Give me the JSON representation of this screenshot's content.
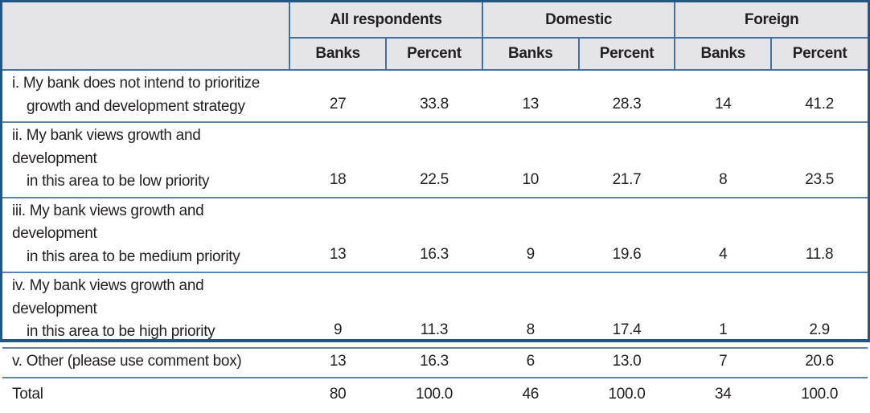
{
  "colors": {
    "frame": "#235682",
    "inner_line": "#45719F",
    "row_line": "#5A85AE",
    "header_bg": "#E5E5E8",
    "text": "#231F20"
  },
  "table": {
    "corner_label": "",
    "groups": [
      {
        "label": "All respondents",
        "columns": [
          "Banks",
          "Percent"
        ]
      },
      {
        "label": "Domestic",
        "columns": [
          "Banks",
          "Percent"
        ]
      },
      {
        "label": "Foreign",
        "columns": [
          "Banks",
          "Percent"
        ]
      }
    ],
    "rows": [
      {
        "label": [
          "i. My bank does not intend to prioritize",
          "growth and development strategy"
        ],
        "values": [
          "27",
          "33.8",
          "13",
          "28.3",
          "14",
          "41.2"
        ]
      },
      {
        "label": [
          "ii. My bank views growth and development",
          "in this area to be low priority"
        ],
        "values": [
          "18",
          "22.5",
          "10",
          "21.7",
          "8",
          "23.5"
        ]
      },
      {
        "label": [
          "iii. My bank views growth and development",
          "in this area to be medium priority"
        ],
        "values": [
          "13",
          "16.3",
          "9",
          "19.6",
          "4",
          "11.8"
        ]
      },
      {
        "label": [
          "iv. My bank views growth and development",
          "in this area to be high priority"
        ],
        "values": [
          "9",
          "11.3",
          "8",
          "17.4",
          "1",
          "2.9"
        ]
      },
      {
        "label": [
          "v. Other (please use comment box)"
        ],
        "values": [
          "13",
          "16.3",
          "6",
          "13.0",
          "7",
          "20.6"
        ]
      },
      {
        "label": [
          "Total"
        ],
        "values": [
          "80",
          "100.0",
          "46",
          "100.0",
          "34",
          "100.0"
        ]
      }
    ]
  }
}
